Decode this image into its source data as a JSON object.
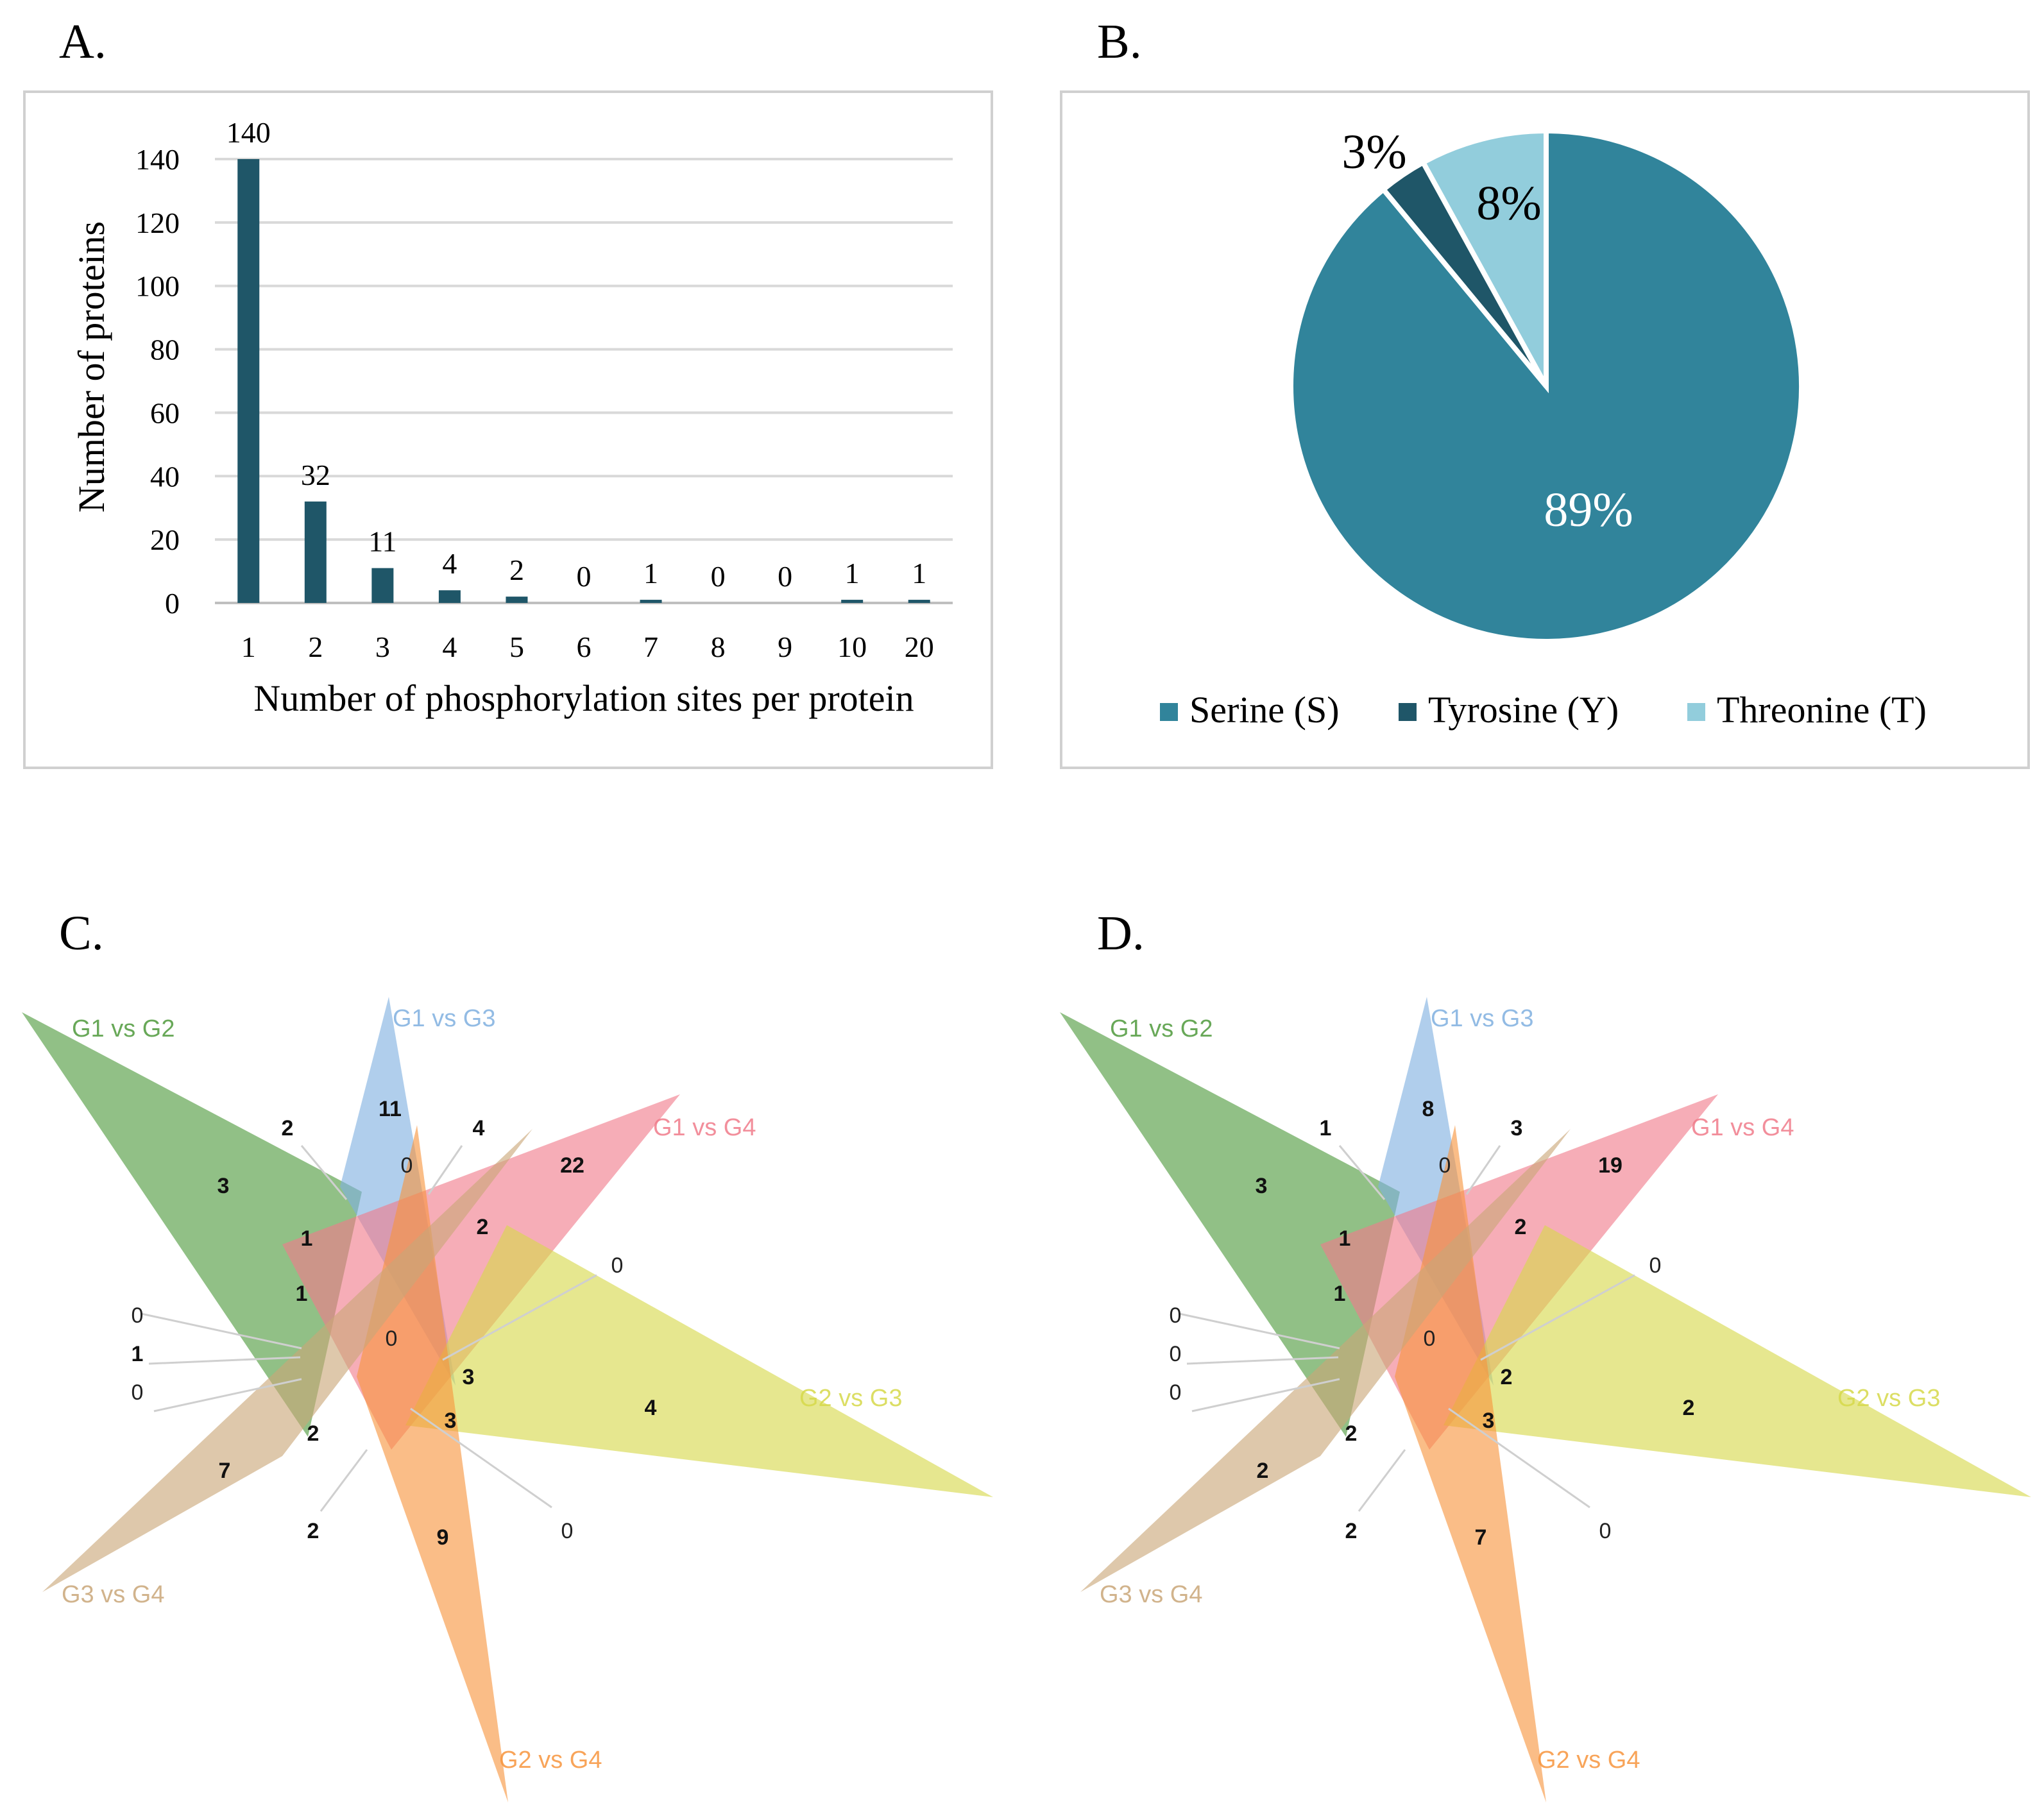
{
  "panels": {
    "a_label": "A.",
    "b_label": "B.",
    "c_label": "C.",
    "d_label": "D."
  },
  "chart_data": [
    {
      "type": "bar",
      "id": "A",
      "categories": [
        "1",
        "2",
        "3",
        "4",
        "5",
        "6",
        "7",
        "8",
        "9",
        "10",
        "20"
      ],
      "values": [
        140,
        32,
        11,
        4,
        2,
        0,
        1,
        0,
        0,
        1,
        1
      ],
      "data_labels": [
        "140",
        "32",
        "11",
        "4",
        "2",
        "0",
        "1",
        "0",
        "0",
        "1",
        "1"
      ],
      "xlabel": "Number of phosphorylation sites per protein",
      "ylabel": "Number of proteins",
      "ylim": [
        0,
        140
      ],
      "yticks": [
        "0",
        "20",
        "40",
        "60",
        "80",
        "100",
        "120",
        "140"
      ],
      "grid": true,
      "bar_color": "#1f5668"
    },
    {
      "type": "pie",
      "id": "B",
      "labels": [
        "Serine (S)",
        "Tyrosine (Y)",
        "Threonine (T)"
      ],
      "values": [
        89,
        3,
        8
      ],
      "value_labels": [
        "89%",
        "3%",
        "8%"
      ],
      "colors": [
        "#31849b",
        "#1f5668",
        "#92cddc"
      ],
      "legend": "bottom"
    },
    {
      "type": "venn",
      "id": "C",
      "sets": [
        "G1 vs G2",
        "G1 vs G3",
        "G1 vs G4",
        "G2 vs G3",
        "G2 vs G4",
        "G3 vs G4"
      ],
      "set_colors": [
        "#4e9a3b",
        "#7fb0e0",
        "#f07b8a",
        "#d6d94a",
        "#f7953d",
        "#c9a678"
      ],
      "region_values": [
        "3",
        "11",
        "22",
        "4",
        "9",
        "7",
        "2",
        "4",
        "0",
        "1",
        "2",
        "1",
        "0",
        "3",
        "3",
        "2",
        "2",
        "0",
        "0",
        "0",
        "1",
        "0"
      ]
    },
    {
      "type": "venn",
      "id": "D",
      "sets": [
        "G1 vs G2",
        "G1 vs G3",
        "G1 vs G4",
        "G2 vs G3",
        "G2 vs G4",
        "G3 vs G4"
      ],
      "set_colors": [
        "#4e9a3b",
        "#7fb0e0",
        "#f07b8a",
        "#d6d94a",
        "#f7953d",
        "#c9a678"
      ],
      "region_values": [
        "3",
        "8",
        "19",
        "2",
        "7",
        "2",
        "1",
        "3",
        "0",
        "1",
        "2",
        "1",
        "0",
        "2",
        "3",
        "2",
        "2",
        "0",
        "0",
        "0",
        "0",
        "0"
      ]
    }
  ]
}
